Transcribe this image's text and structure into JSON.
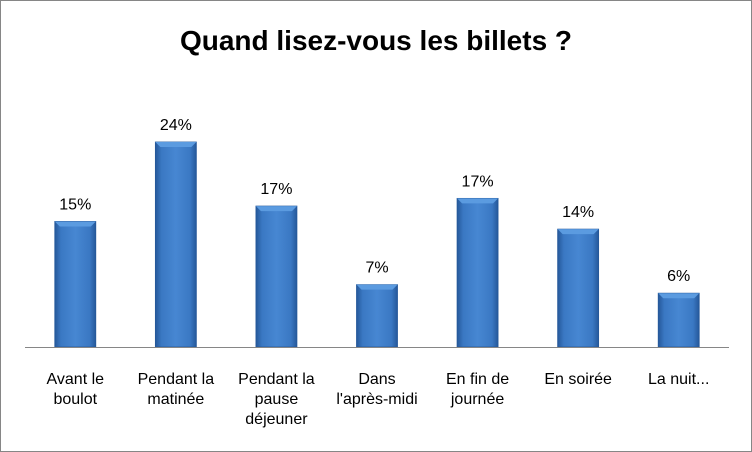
{
  "chart_data": {
    "type": "bar",
    "title": "Quand lisez-vous les billets ?",
    "categories": [
      [
        "Avant le",
        "boulot"
      ],
      [
        "Pendant la",
        "matinée"
      ],
      [
        "Pendant la",
        "pause",
        "déjeuner"
      ],
      [
        "Dans",
        "l'après-midi"
      ],
      [
        "En fin de",
        "journée"
      ],
      [
        "En soirée"
      ],
      [
        "La nuit..."
      ]
    ],
    "values": [
      14.7,
      24,
      16.5,
      7.3,
      17.4,
      13.8,
      6.3
    ],
    "data_labels": [
      "15%",
      "24%",
      "17%",
      "7%",
      "17%",
      "14%",
      "6%"
    ],
    "ylim": [
      0,
      24
    ],
    "xlabel": "",
    "ylabel": "",
    "grid": false,
    "legend": "none",
    "colors": {
      "bar": "#3a78c3",
      "bar_light": "#5b9be0",
      "bar_dark": "#25589a",
      "axis": "#868686"
    }
  }
}
